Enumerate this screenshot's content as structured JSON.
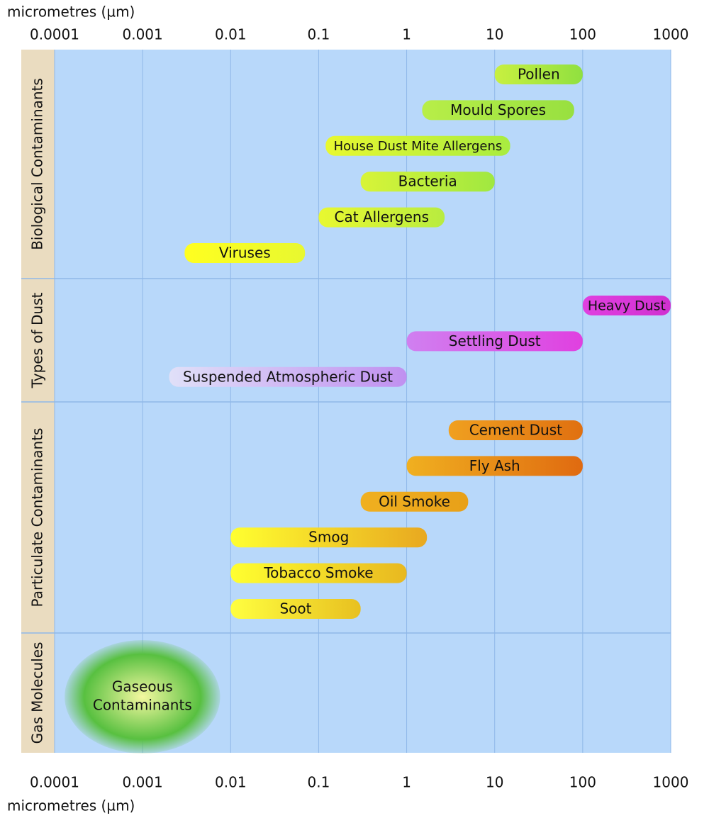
{
  "chart_data": {
    "type": "range",
    "x_label": "micrometres (µm)",
    "xscale": "log",
    "xlim": [
      0.0001,
      1000
    ],
    "xticks": [
      0.0001,
      0.001,
      0.01,
      0.1,
      1,
      10,
      100,
      1000
    ],
    "grid": true,
    "groups": [
      {
        "name": "Biological Contaminants",
        "items": [
          {
            "label": "Pollen",
            "range": [
              10,
              100
            ],
            "colors": [
              "#c8f040",
              "#90e040"
            ]
          },
          {
            "label": "Mould Spores",
            "range": [
              1.5,
              80
            ],
            "colors": [
              "#b8ee48",
              "#98e040"
            ]
          },
          {
            "label": "House Dust Mite Allergens",
            "range": [
              0.12,
              15
            ],
            "colors": [
              "#e8f830",
              "#a8ec40"
            ]
          },
          {
            "label": "Bacteria",
            "range": [
              0.3,
              10
            ],
            "colors": [
              "#d8f438",
              "#a0e840"
            ]
          },
          {
            "label": "Cat Allergens",
            "range": [
              0.1,
              2.7
            ],
            "colors": [
              "#e8f830",
              "#b8ec40"
            ]
          },
          {
            "label": "Viruses",
            "range": [
              0.003,
              0.07
            ],
            "colors": [
              "#ffff20",
              "#e8f830"
            ]
          }
        ]
      },
      {
        "name": "Types of Dust",
        "items": [
          {
            "label": "Heavy Dust",
            "range": [
              100,
              1000
            ],
            "colors": [
              "#e040e0",
              "#d030d0"
            ]
          },
          {
            "label": "Settling Dust",
            "range": [
              1,
              100
            ],
            "colors": [
              "#d080f0",
              "#e040e0"
            ]
          },
          {
            "label": "Suspended Atmospheric Dust",
            "range": [
              0.002,
              1
            ],
            "colors": [
              "#e0e0f8",
              "#c090f0"
            ]
          }
        ]
      },
      {
        "name": "Particulate Contaminants",
        "items": [
          {
            "label": "Cement Dust",
            "range": [
              3,
              100
            ],
            "colors": [
              "#f0a020",
              "#e07010"
            ]
          },
          {
            "label": "Fly Ash",
            "range": [
              1,
              100
            ],
            "colors": [
              "#f0b020",
              "#e06a10"
            ]
          },
          {
            "label": "Oil Smoke",
            "range": [
              0.3,
              5
            ],
            "colors": [
              "#f0b020",
              "#e8a018"
            ]
          },
          {
            "label": "Smog",
            "range": [
              0.01,
              1.7
            ],
            "colors": [
              "#ffff30",
              "#e8a820"
            ]
          },
          {
            "label": "Tobacco Smoke",
            "range": [
              0.01,
              1
            ],
            "colors": [
              "#ffff30",
              "#e8b820"
            ]
          },
          {
            "label": "Soot",
            "range": [
              0.01,
              0.3
            ],
            "colors": [
              "#ffff40",
              "#e8c020"
            ]
          }
        ]
      },
      {
        "name": "Gas Molecules",
        "items": [
          {
            "label": [
              "Gaseous",
              "Contaminants"
            ],
            "range": [
              0.00013,
              0.0076
            ],
            "colors": [
              "#f4f8a0",
              "#58c040"
            ]
          }
        ]
      }
    ]
  }
}
